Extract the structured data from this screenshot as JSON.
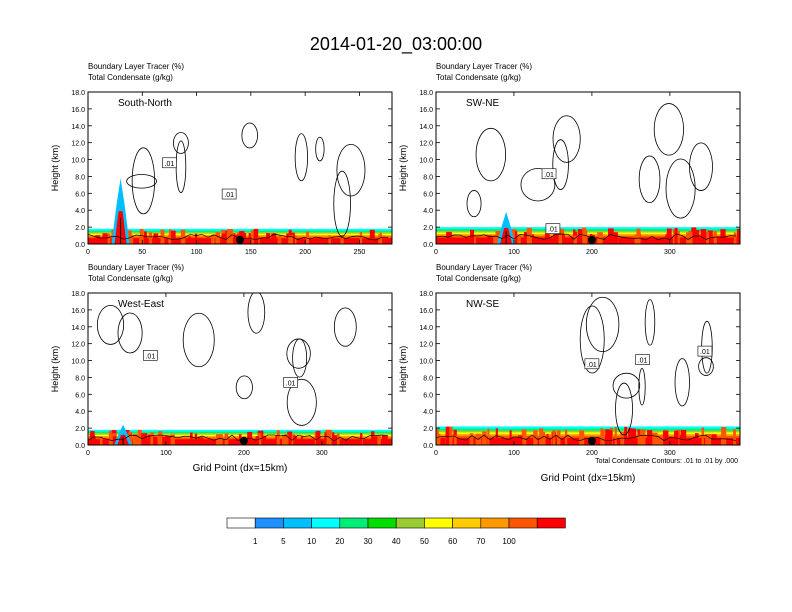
{
  "title": "2014-01-20_03:00:00",
  "note": "Total Condensate Contours: .01 to .01 by .000",
  "colorbar": {
    "colors": [
      "#ffffff",
      "#1e90ff",
      "#00bfff",
      "#00ffff",
      "#00ee76",
      "#00dd00",
      "#9acd32",
      "#ffff00",
      "#ffcc00",
      "#ff9900",
      "#ff5500",
      "#ff0000"
    ],
    "labels": [
      "1",
      "5",
      "10",
      "20",
      "30",
      "40",
      "50",
      "60",
      "70",
      "100"
    ]
  },
  "chart_data": [
    {
      "type": "heatmap",
      "panel": "South-North",
      "subtitle1": "Boundary Layer Tracer   (%)",
      "subtitle2": "Total Condensate   (g/kg)",
      "ylabel": "Height (km)",
      "xlabel": "",
      "xlim": [
        0,
        280
      ],
      "ylim": [
        0,
        18
      ],
      "xticks": [
        0,
        50,
        100,
        150,
        200,
        250
      ],
      "yticks": [
        "0.0",
        "2.0",
        "4.0",
        "6.0",
        "8.0",
        "10.0",
        "12.0",
        "14.0",
        "16.0",
        "18.0"
      ],
      "marker_x": 140,
      "contour_labels": [
        {
          "text": ".01",
          "x": 75,
          "y": 9.5
        },
        {
          "text": ".01",
          "x": 130,
          "y": 5.8
        }
      ],
      "boundary_layer_top_km": 1.8,
      "spike_x": 30,
      "spike_top_km": 7.8
    },
    {
      "type": "heatmap",
      "panel": "SW-NE",
      "subtitle1": "Boundary Layer Tracer   (%)",
      "subtitle2": "Total Condensate   (g/kg)",
      "ylabel": "Height (km)",
      "xlabel": "",
      "xlim": [
        0,
        390
      ],
      "ylim": [
        0,
        18
      ],
      "xticks": [
        0,
        100,
        200,
        300
      ],
      "yticks": [
        "0.0",
        "2.0",
        "4.0",
        "6.0",
        "8.0",
        "10.0",
        "12.0",
        "14.0",
        "16.0",
        "18.0"
      ],
      "marker_x": 200,
      "contour_labels": [
        {
          "text": ".01",
          "x": 145,
          "y": 8.2
        },
        {
          "text": ".01",
          "x": 150,
          "y": 1.7
        }
      ],
      "boundary_layer_top_km": 2.0,
      "spike_x": 90,
      "spike_top_km": 3.8
    },
    {
      "type": "heatmap",
      "panel": "West-East",
      "subtitle1": "Boundary Layer Tracer   (%)",
      "subtitle2": "Total Condensate   (g/kg)",
      "ylabel": "Height (km)",
      "xlabel": "Grid Point (dx=15km)",
      "xlim": [
        0,
        390
      ],
      "ylim": [
        0,
        18
      ],
      "xticks": [
        0,
        100,
        200,
        300
      ],
      "yticks": [
        "0.0",
        "2.0",
        "4.0",
        "6.0",
        "8.0",
        "10.0",
        "12.0",
        "14.0",
        "16.0",
        "18.0"
      ],
      "marker_x": 200,
      "contour_labels": [
        {
          "text": ".01",
          "x": 80,
          "y": 10.5
        },
        {
          "text": ".01",
          "x": 260,
          "y": 7.3
        }
      ],
      "boundary_layer_top_km": 1.8,
      "spike_x": 45,
      "spike_top_km": 2.4
    },
    {
      "type": "heatmap",
      "panel": "NW-SE",
      "subtitle1": "Boundary Layer Tracer   (%)",
      "subtitle2": "Total Condensate   (g/kg)",
      "ylabel": "Height (km)",
      "xlabel": "Grid Point (dx=15km)",
      "xlim": [
        0,
        390
      ],
      "ylim": [
        0,
        18
      ],
      "xticks": [
        0,
        100,
        200,
        300
      ],
      "yticks": [
        "0.0",
        "2.0",
        "4.0",
        "6.0",
        "8.0",
        "10.0",
        "12.0",
        "14.0",
        "16.0",
        "18.0"
      ],
      "marker_x": 200,
      "contour_labels": [
        {
          "text": ".01",
          "x": 200,
          "y": 9.5
        },
        {
          "text": ".01",
          "x": 265,
          "y": 10.0
        },
        {
          "text": ".01",
          "x": 345,
          "y": 11.0
        }
      ],
      "boundary_layer_top_km": 2.2,
      "spike_x": 0,
      "spike_top_km": 0
    }
  ]
}
